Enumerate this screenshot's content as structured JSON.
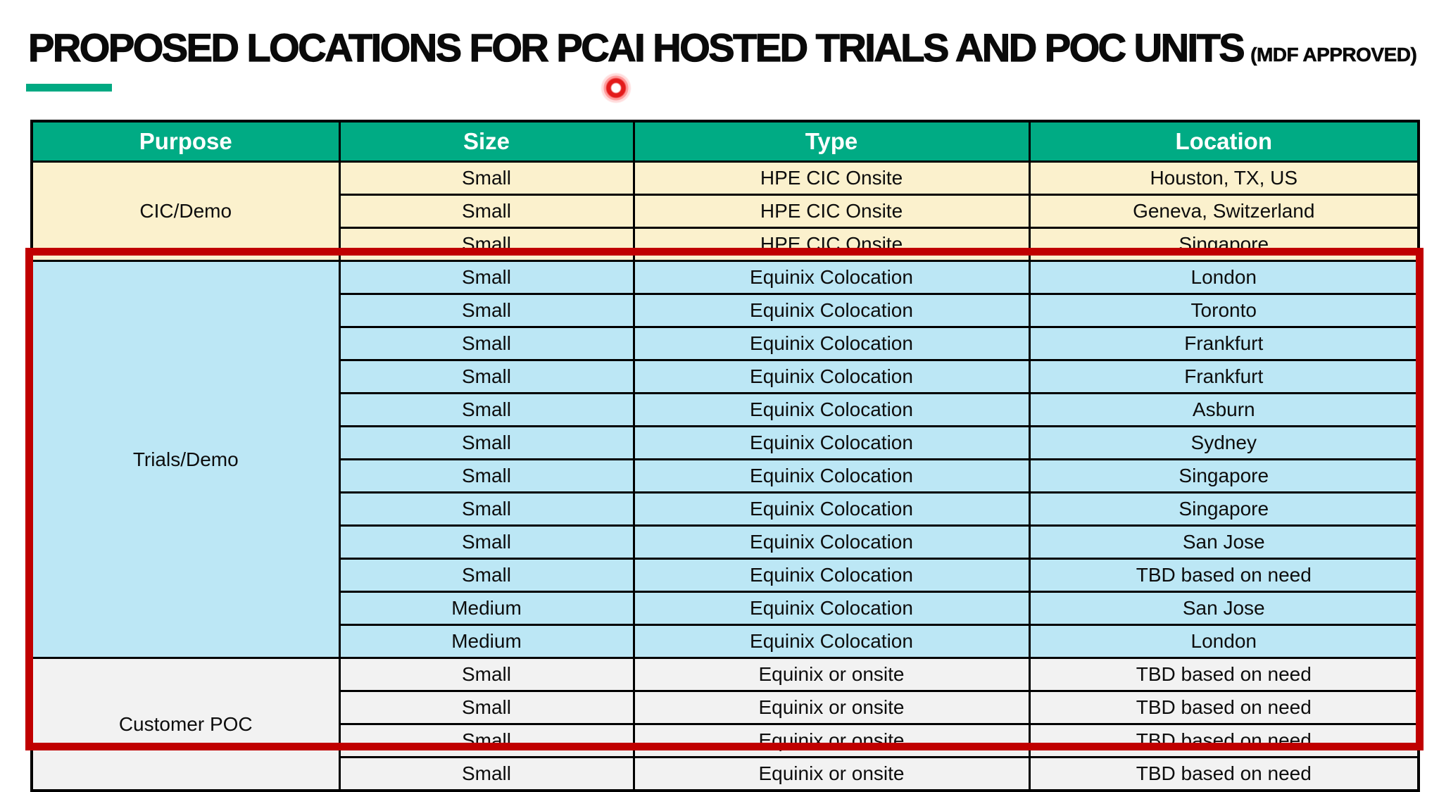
{
  "title": {
    "main": "PROPOSED LOCATIONS FOR PCAI HOSTED TRIALS AND POC UNITS",
    "suffix": "(MDF APPROVED)"
  },
  "colors": {
    "header_bg": "#00AB84",
    "accent_bar": "#00A982",
    "highlight": "#C00000",
    "cic_bg": "#FBF1CD",
    "trials_bg": "#BCE7F5",
    "poc_bg": "#F2F2F2"
  },
  "table": {
    "headers": [
      "Purpose",
      "Size",
      "Type",
      "Location"
    ],
    "groups": [
      {
        "purpose": "CIC/Demo",
        "bg": "#FBF1CD",
        "rows": [
          [
            "Small",
            "HPE CIC Onsite",
            "Houston, TX, US"
          ],
          [
            "Small",
            "HPE CIC Onsite",
            "Geneva, Switzerland"
          ],
          [
            "Small",
            "HPE CIC Onsite",
            "Singapore"
          ]
        ]
      },
      {
        "purpose": "Trials/Demo",
        "bg": "#BCE7F5",
        "rows": [
          [
            "Small",
            "Equinix Colocation",
            "London"
          ],
          [
            "Small",
            "Equinix Colocation",
            "Toronto"
          ],
          [
            "Small",
            "Equinix Colocation",
            "Frankfurt"
          ],
          [
            "Small",
            "Equinix Colocation",
            "Frankfurt"
          ],
          [
            "Small",
            "Equinix Colocation",
            "Asburn"
          ],
          [
            "Small",
            "Equinix Colocation",
            "Sydney"
          ],
          [
            "Small",
            "Equinix Colocation",
            "Singapore"
          ],
          [
            "Small",
            "Equinix Colocation",
            "Singapore"
          ],
          [
            "Small",
            "Equinix Colocation",
            "San Jose"
          ],
          [
            "Small",
            "Equinix Colocation",
            "TBD based on need"
          ],
          [
            "Medium",
            "Equinix Colocation",
            "San Jose"
          ],
          [
            "Medium",
            "Equinix Colocation",
            "London"
          ]
        ]
      },
      {
        "purpose": "Customer POC",
        "bg": "#F2F2F2",
        "rows": [
          [
            "Small",
            "Equinix or onsite",
            "TBD based on need"
          ],
          [
            "Small",
            "Equinix or onsite",
            "TBD based on need"
          ],
          [
            "Small",
            "Equinix or onsite",
            "TBD based on need"
          ],
          [
            "Small",
            "Equinix or onsite",
            "TBD based on need"
          ]
        ]
      }
    ]
  }
}
